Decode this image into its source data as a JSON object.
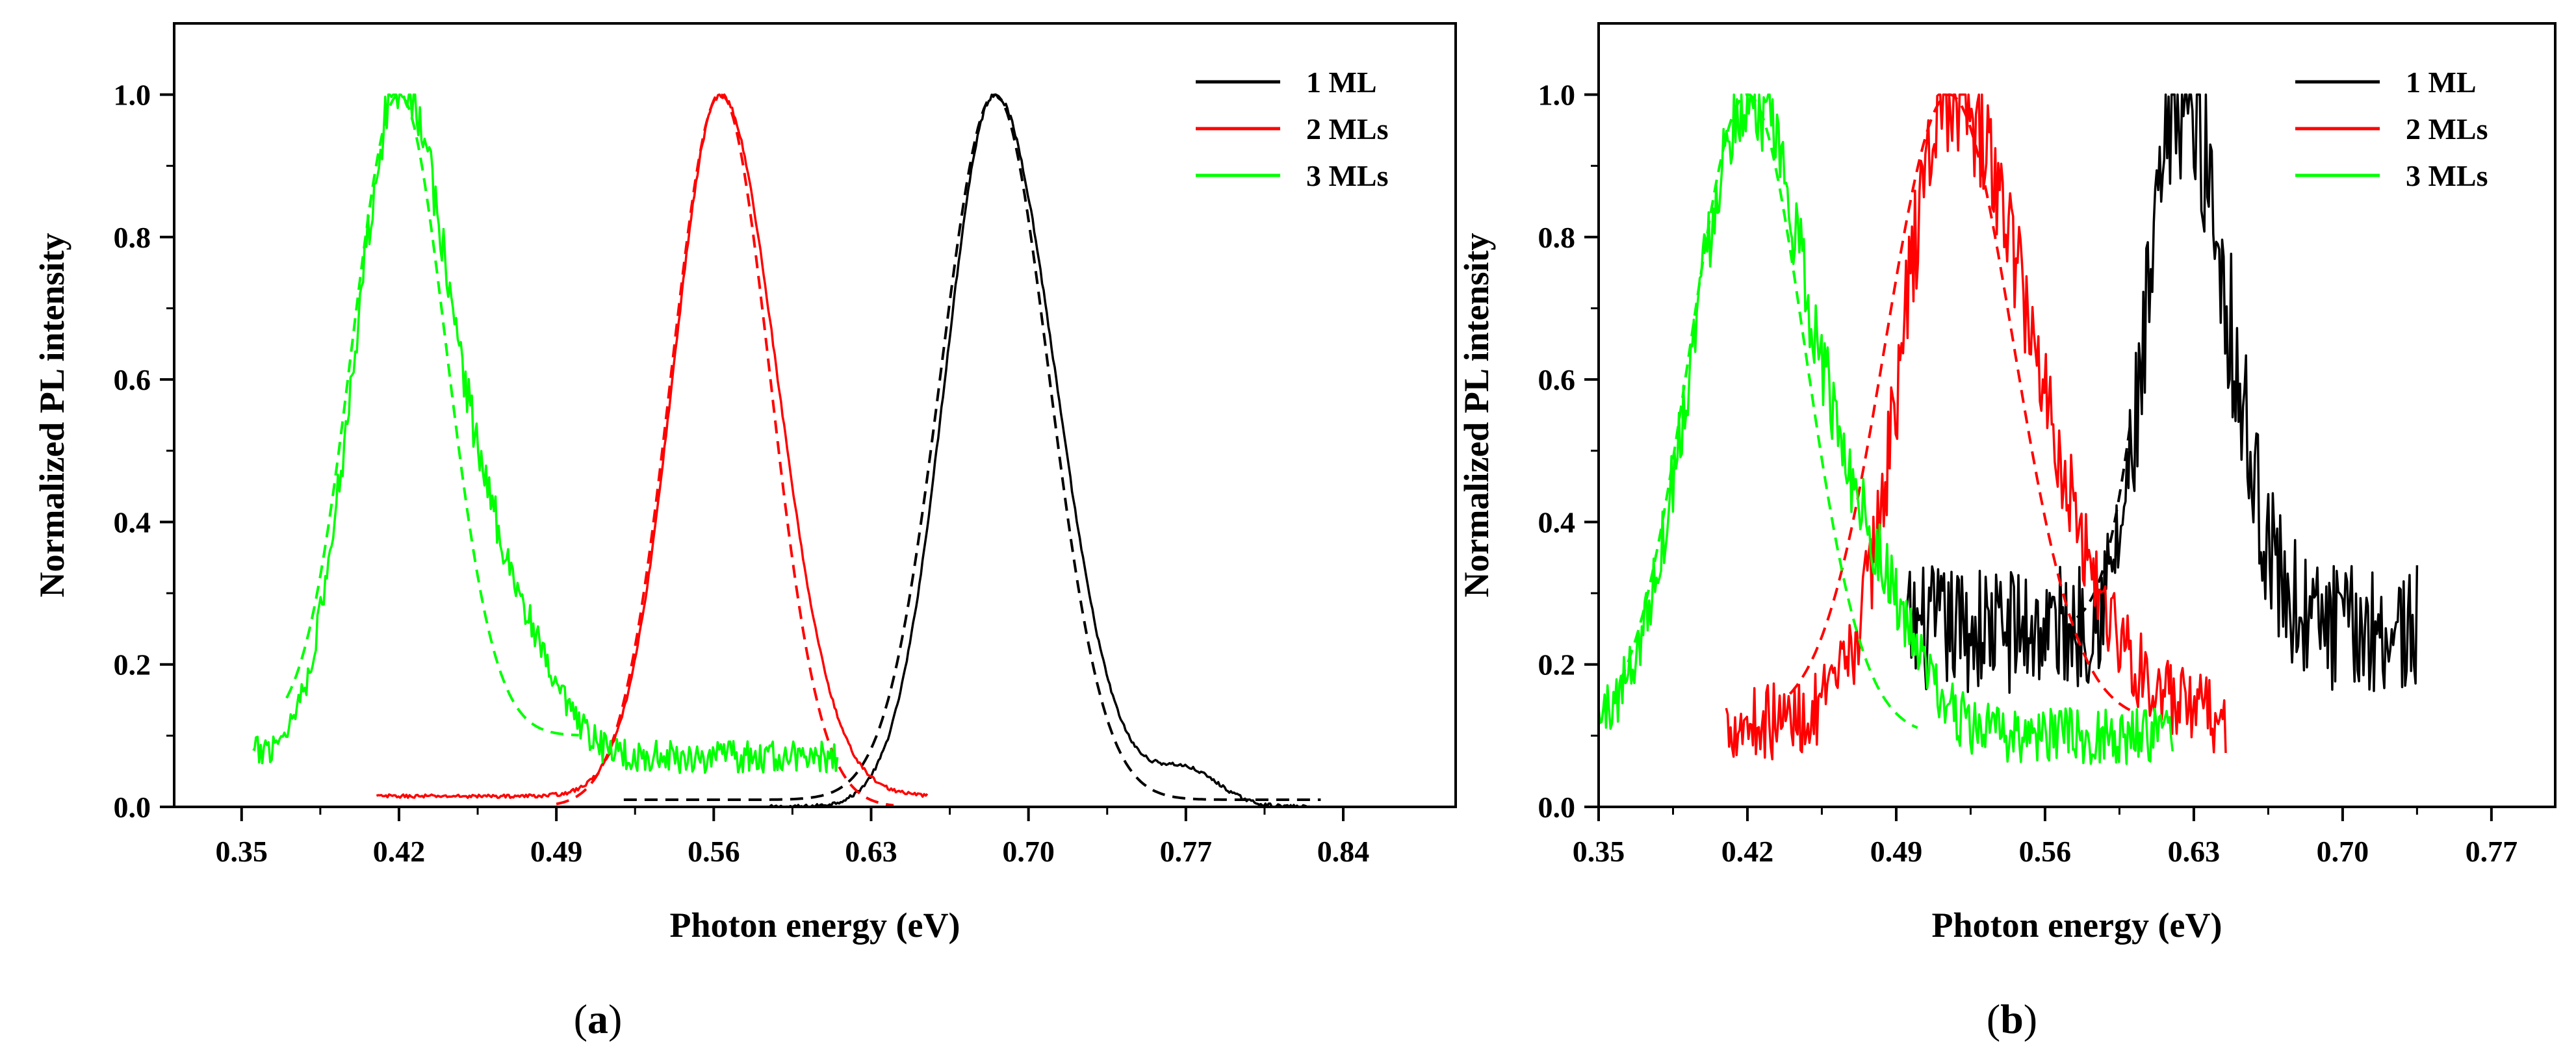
{
  "chart_data": [
    {
      "type": "line",
      "panel_label": "a",
      "panel_label_display": [
        "(",
        "a",
        ")"
      ],
      "xlabel": "Photon energy (eV)",
      "ylabel": "Normalized PL intensity",
      "xlim": [
        0.32,
        0.89
      ],
      "ylim": [
        0.0,
        1.1
      ],
      "xticks": [
        0.35,
        0.42,
        0.49,
        0.56,
        0.63,
        0.7,
        0.77,
        0.84
      ],
      "xtick_labels": [
        "0.35",
        "0.42",
        "0.49",
        "0.56",
        "0.63",
        "0.70",
        "0.77",
        "0.84"
      ],
      "yticks": [
        0.0,
        0.2,
        0.4,
        0.6,
        0.8,
        1.0
      ],
      "ytick_labels": [
        "0.0",
        "0.2",
        "0.4",
        "0.6",
        "0.8",
        "1.0"
      ],
      "legend_position": "top-right",
      "series": [
        {
          "name": "1 ML",
          "color": "#000000",
          "xrange": [
            0.585,
            0.825
          ],
          "peak": 0.685,
          "sigma_left": 0.022,
          "sigma_right": 0.027,
          "base": 0.0,
          "noise": 0.004,
          "shoulder": {
            "center": 0.77,
            "sigma": 0.015,
            "amp": 0.05
          },
          "fit_sigma": 0.024,
          "fit_range": [
            0.52,
            0.83
          ],
          "fit_base": 0.01
        },
        {
          "name": "2 MLs",
          "color": "#ff0000",
          "xrange": [
            0.41,
            0.655
          ],
          "peak": 0.563,
          "sigma_left": 0.021,
          "sigma_right": 0.025,
          "base": 0.015,
          "noise": 0.004,
          "fit_sigma": 0.022,
          "fit_range": [
            0.49,
            0.64
          ],
          "fit_base": 0.0
        },
        {
          "name": "3 MLs",
          "color": "#00ff00",
          "xrange": [
            0.355,
            0.615
          ],
          "peak": 0.42,
          "sigma_left": 0.02,
          "sigma_right": 0.022,
          "base": 0.07,
          "noise": 0.035,
          "shoulder": {
            "center": 0.465,
            "sigma": 0.02,
            "amp": 0.2
          },
          "fit_sigma": 0.021,
          "fit_range": [
            0.37,
            0.5
          ],
          "fit_base": 0.1
        }
      ]
    },
    {
      "type": "line",
      "panel_label": "b",
      "panel_label_display": [
        "(",
        "b",
        ")"
      ],
      "xlabel": "Photon energy (eV)",
      "ylabel": "Normalized PL intensity",
      "xlim": [
        0.35,
        0.8
      ],
      "ylim": [
        0.0,
        1.1
      ],
      "xticks": [
        0.35,
        0.42,
        0.49,
        0.56,
        0.63,
        0.7,
        0.77
      ],
      "xtick_labels": [
        "0.35",
        "0.42",
        "0.49",
        "0.56",
        "0.63",
        "0.70",
        "0.77"
      ],
      "yticks": [
        0.0,
        0.2,
        0.4,
        0.6,
        0.8,
        1.0
      ],
      "ytick_labels": [
        "0.0",
        "0.2",
        "0.4",
        "0.6",
        "0.8",
        "1.0"
      ],
      "legend_position": "top-right",
      "series": [
        {
          "name": "1 ML",
          "color": "#000000",
          "xrange": [
            0.495,
            0.735
          ],
          "peak": 0.625,
          "sigma_left": 0.016,
          "sigma_right": 0.021,
          "base": 0.25,
          "noise": 0.12,
          "fit_sigma": 0.018,
          "fit_range": [
            0.575,
            0.6
          ],
          "fit_base": 0.25
        },
        {
          "name": "2 MLs",
          "color": "#ff0000",
          "xrange": [
            0.41,
            0.645
          ],
          "peak": 0.515,
          "sigma_left": 0.022,
          "sigma_right": 0.04,
          "base": 0.12,
          "noise": 0.08,
          "fit_sigma": 0.03,
          "fit_range": [
            0.44,
            0.6
          ],
          "fit_base": 0.12
        },
        {
          "name": "3 MLs",
          "color": "#00ff00",
          "xrange": [
            0.35,
            0.62
          ],
          "peak": 0.42,
          "sigma_left": 0.026,
          "sigma_right": 0.03,
          "base": 0.1,
          "noise": 0.06,
          "shoulder": {
            "center": 0.48,
            "sigma": 0.02,
            "amp": 0.15
          },
          "fit_sigma": 0.027,
          "fit_range": [
            0.36,
            0.5
          ],
          "fit_base": 0.1
        }
      ]
    }
  ]
}
